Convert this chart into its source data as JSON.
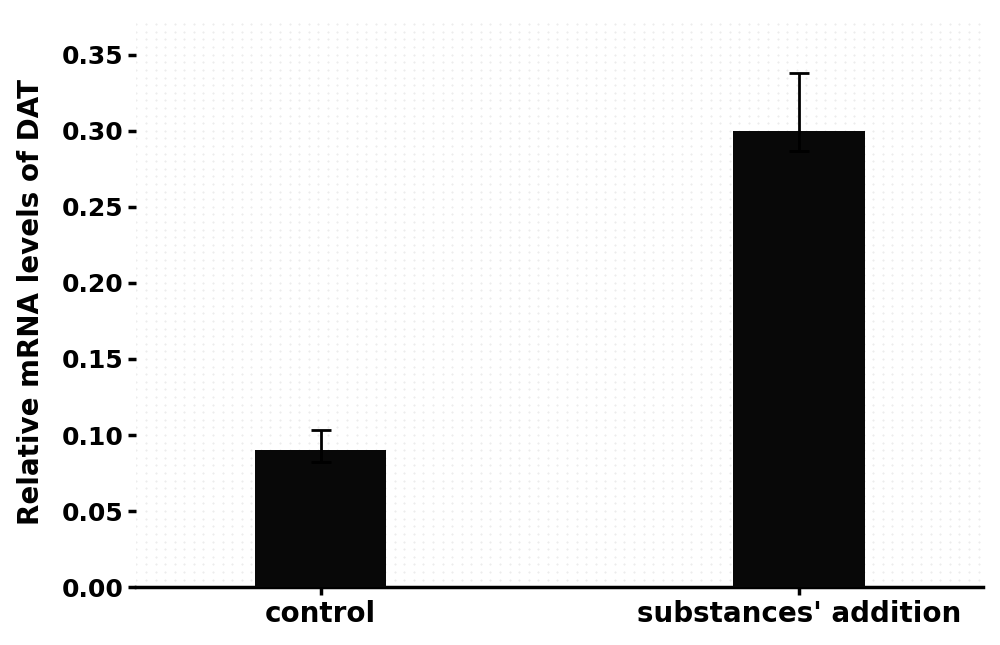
{
  "categories": [
    "control",
    "substances' addition"
  ],
  "values": [
    0.09,
    0.3
  ],
  "errors_upper": [
    0.013,
    0.038
  ],
  "errors_lower": [
    0.008,
    0.013
  ],
  "bar_color": "#080808",
  "bar_width": 0.55,
  "bar_positions": [
    1,
    3
  ],
  "ylabel": "Relative mRNA levels of DAT",
  "ylim": [
    0.0,
    0.375
  ],
  "yticks": [
    0.0,
    0.05,
    0.1,
    0.15,
    0.2,
    0.25,
    0.3,
    0.35
  ],
  "background_color": "#ffffff",
  "tick_fontsize": 18,
  "label_fontsize": 20,
  "xlabel_fontsize": 20,
  "error_capsize": 7,
  "error_linewidth": 2.0,
  "error_capthick": 2.0,
  "spine_linewidth": 2.5
}
